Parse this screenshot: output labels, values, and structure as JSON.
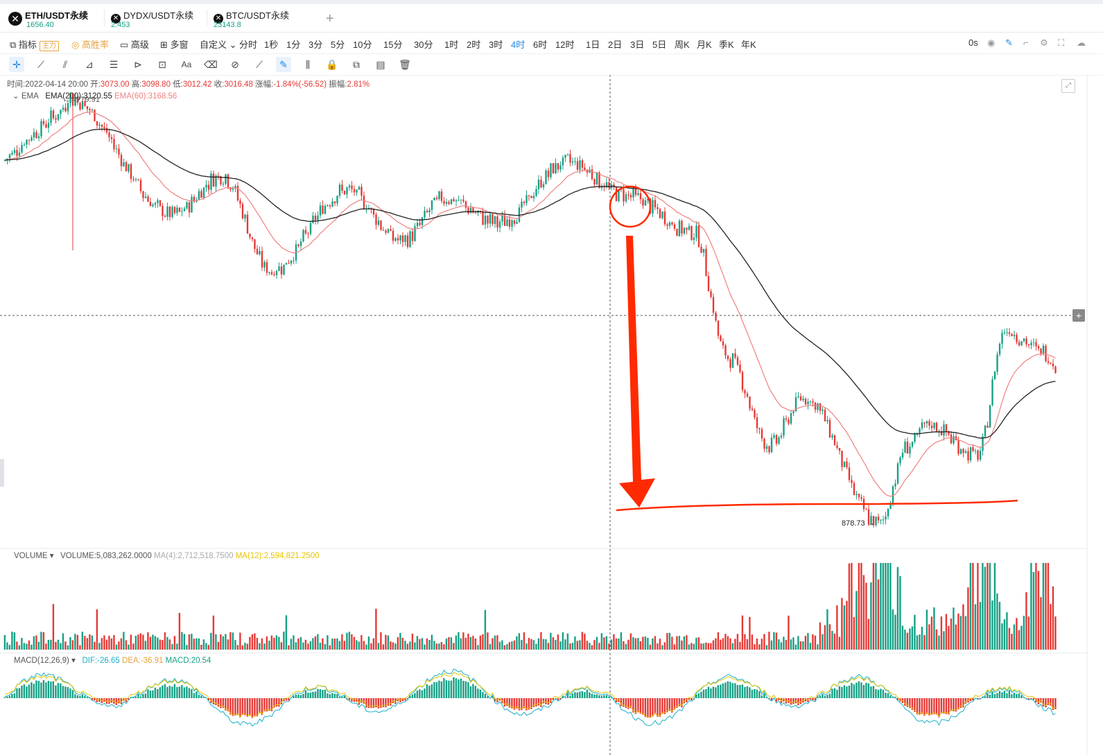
{
  "tabs": [
    {
      "icon": "okx-icon",
      "name": "ETH/USDT永续",
      "price": "1656.40",
      "active": true
    },
    {
      "icon": "okx-icon",
      "name": "DYDX/USDT永续",
      "price": "2.453",
      "active": false
    },
    {
      "icon": "okx-icon",
      "name": "BTC/USDT永续",
      "price": "23143.8",
      "active": false
    }
  ],
  "toolbar": {
    "indicator": "指标",
    "main_badge": "主力",
    "winrate": "高胜率",
    "advanced": "高级",
    "multiwin": "多窗",
    "custom": "自定义",
    "timeshare": "分时",
    "intervals": [
      "1秒",
      "1分",
      "3分",
      "5分",
      "10分",
      "15分",
      "30分",
      "1时",
      "2时",
      "3时",
      "4时",
      "6时",
      "12时",
      "1日",
      "2日",
      "3日",
      "5日",
      "周K",
      "月K",
      "季K",
      "年K"
    ],
    "active_interval": "4时",
    "countdown": "0s"
  },
  "drawing_tools": [
    "crosshair-icon",
    "trendline-icon",
    "parallel-channel-icon",
    "fib-icon",
    "horizontal-lines-icon",
    "pattern-icon",
    "measure-icon",
    "text-icon",
    "erase-icon",
    "brush-icon",
    "ruler-icon",
    "pen-icon",
    "candle-icon",
    "lock-icon",
    "copy-icon",
    "layers-icon",
    "trash-icon"
  ],
  "ohlc": {
    "time_label": "时间:",
    "time": "2022-04-14 20:00",
    "open_label": "开:",
    "open": "3073.00",
    "high_label": "高:",
    "high": "3098.80",
    "low_label": "低:",
    "low": "3012.42",
    "close_label": "收:",
    "close": "3016.48",
    "change_label": "涨幅:",
    "change": "-1.84%(-56.52)",
    "amp_label": "振幅:",
    "amp": "2.81%"
  },
  "ema": {
    "name": "EMA",
    "ema200": "EMA(200):3120.55",
    "ema60": "EMA(60):3168.56"
  },
  "volume": {
    "name": "VOLUME",
    "value": "VOLUME:5,083,262.0000",
    "ma4": "MA(4):2,712,518.7500",
    "ma12": "MA(12):2,594,821.2500"
  },
  "macd": {
    "name": "MACD(12,26,9)",
    "dif": "DIF:-26.65",
    "dea": "DEA:-36.91",
    "macd": "MACD:20.54"
  },
  "annotations": {
    "high_label": "← 4779.91",
    "low_label": "878.73 →"
  },
  "colors": {
    "up": "#16a085",
    "down": "#e53935",
    "ema200": "#222222",
    "ema60": "#f08080",
    "accent": "#1e88e5",
    "annotation": "#ff2a00"
  },
  "chart_data": {
    "type": "candlestick",
    "symbol": "ETH/USDT永续",
    "interval": "4时",
    "price_points": [
      4779.91,
      3000,
      3500,
      2400,
      3300,
      2700,
      3200,
      2900,
      3700,
      3250,
      2800,
      1700,
      1200,
      1450,
      878.73,
      1200,
      1300,
      1150,
      1900,
      1750,
      1656.4
    ],
    "annotated_low": 878.73,
    "annotated_high": 4779.91
  }
}
